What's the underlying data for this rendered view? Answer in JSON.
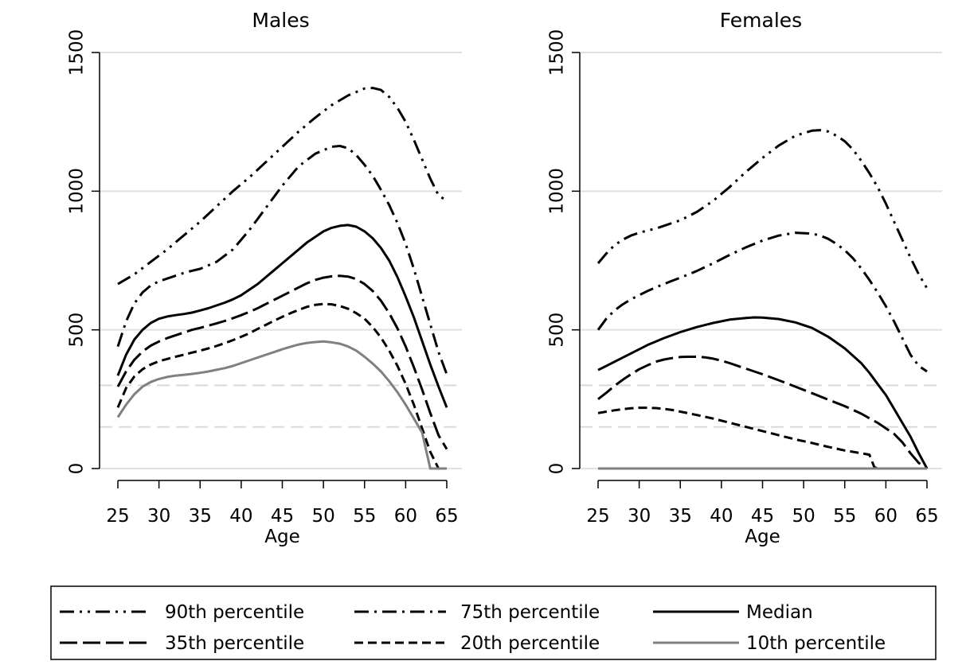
{
  "chart_data": [
    {
      "type": "line",
      "title": "Males",
      "xlabel": "Age",
      "ylabel": "",
      "xlim": [
        25,
        65
      ],
      "ylim": [
        0,
        1500
      ],
      "xticks": [
        25,
        30,
        35,
        40,
        45,
        50,
        55,
        60,
        65
      ],
      "yticks": [
        0,
        500,
        1000,
        1500
      ],
      "reference_lines": [
        150,
        300
      ],
      "series": [
        {
          "name": "90th percentile",
          "x": [
            25,
            27,
            29,
            31,
            33,
            35,
            37,
            39,
            41,
            43,
            45,
            47,
            49,
            51,
            53,
            55,
            56,
            57,
            58,
            59,
            60,
            61,
            62,
            63,
            64,
            65
          ],
          "y": [
            665,
            700,
            745,
            790,
            840,
            890,
            945,
            1000,
            1050,
            1105,
            1160,
            1215,
            1265,
            1310,
            1345,
            1370,
            1372,
            1365,
            1340,
            1300,
            1250,
            1185,
            1115,
            1045,
            985,
            965
          ]
        },
        {
          "name": "75th percentile",
          "x": [
            25,
            26,
            27,
            28,
            29,
            30,
            31,
            32,
            33,
            34,
            35,
            37,
            39,
            41,
            43,
            45,
            47,
            49,
            51,
            52,
            53,
            54,
            55,
            56,
            57,
            58,
            59,
            60,
            61,
            62,
            63,
            64,
            65
          ],
          "y": [
            440,
            530,
            595,
            635,
            660,
            675,
            685,
            695,
            705,
            713,
            720,
            745,
            790,
            860,
            940,
            1020,
            1090,
            1135,
            1160,
            1163,
            1155,
            1130,
            1095,
            1055,
            1005,
            950,
            885,
            810,
            720,
            620,
            520,
            420,
            340
          ]
        },
        {
          "name": "Median",
          "x": [
            25,
            26,
            27,
            28,
            29,
            30,
            31,
            32,
            33,
            34,
            35,
            36,
            37,
            38,
            39,
            40,
            41,
            42,
            43,
            44,
            45,
            46,
            47,
            48,
            49,
            50,
            51,
            52,
            53,
            54,
            55,
            56,
            57,
            58,
            59,
            60,
            61,
            62,
            63,
            64,
            65
          ],
          "y": [
            335,
            410,
            465,
            500,
            525,
            540,
            548,
            553,
            557,
            562,
            570,
            578,
            588,
            598,
            610,
            625,
            645,
            665,
            690,
            715,
            740,
            765,
            790,
            815,
            835,
            855,
            868,
            875,
            878,
            872,
            855,
            830,
            795,
            750,
            690,
            620,
            545,
            460,
            375,
            295,
            220
          ]
        },
        {
          "name": "35th percentile",
          "x": [
            25,
            26,
            27,
            28,
            29,
            30,
            31,
            32,
            33,
            34,
            35,
            36,
            37,
            38,
            39,
            40,
            41,
            42,
            43,
            44,
            45,
            46,
            47,
            48,
            49,
            50,
            51,
            52,
            53,
            54,
            55,
            56,
            57,
            58,
            59,
            60,
            61,
            62,
            63,
            64,
            65
          ],
          "y": [
            295,
            350,
            392,
            422,
            443,
            458,
            470,
            480,
            490,
            500,
            507,
            515,
            523,
            532,
            542,
            553,
            565,
            578,
            593,
            608,
            623,
            638,
            653,
            668,
            680,
            688,
            693,
            695,
            692,
            683,
            665,
            640,
            605,
            560,
            505,
            440,
            365,
            285,
            200,
            120,
            70
          ]
        },
        {
          "name": "20th percentile",
          "x": [
            25,
            26,
            27,
            28,
            29,
            30,
            31,
            32,
            33,
            34,
            35,
            36,
            37,
            38,
            39,
            40,
            41,
            42,
            43,
            44,
            45,
            46,
            47,
            48,
            49,
            50,
            51,
            52,
            53,
            54,
            55,
            56,
            57,
            58,
            59,
            60,
            61,
            62,
            63,
            64,
            65
          ],
          "y": [
            220,
            290,
            332,
            358,
            375,
            387,
            395,
            403,
            410,
            418,
            425,
            433,
            442,
            452,
            463,
            475,
            488,
            503,
            518,
            533,
            547,
            560,
            572,
            583,
            590,
            593,
            592,
            586,
            576,
            560,
            540,
            510,
            472,
            425,
            370,
            305,
            230,
            145,
            60,
            0,
            0
          ]
        },
        {
          "name": "10th percentile",
          "x": [
            25,
            26,
            27,
            28,
            29,
            30,
            31,
            32,
            33,
            34,
            35,
            36,
            37,
            38,
            39,
            40,
            41,
            42,
            43,
            44,
            45,
            46,
            47,
            48,
            49,
            50,
            51,
            52,
            53,
            54,
            55,
            56,
            57,
            58,
            59,
            60,
            61,
            62,
            63,
            64,
            65
          ],
          "y": [
            185,
            230,
            268,
            295,
            312,
            323,
            330,
            335,
            338,
            341,
            345,
            350,
            356,
            362,
            370,
            380,
            390,
            400,
            410,
            420,
            430,
            439,
            447,
            453,
            456,
            458,
            455,
            450,
            440,
            425,
            403,
            378,
            350,
            315,
            275,
            230,
            180,
            130,
            0,
            0,
            0
          ]
        }
      ]
    },
    {
      "type": "line",
      "title": "Females",
      "xlabel": "Age",
      "ylabel": "",
      "xlim": [
        25,
        65
      ],
      "ylim": [
        0,
        1500
      ],
      "xticks": [
        25,
        30,
        35,
        40,
        45,
        50,
        55,
        60,
        65
      ],
      "yticks": [
        0,
        500,
        1000,
        1500
      ],
      "reference_lines": [
        150,
        300
      ],
      "series": [
        {
          "name": "90th percentile",
          "x": [
            25,
            26,
            27,
            28,
            29,
            30,
            31,
            32,
            33,
            34,
            35,
            37,
            39,
            41,
            43,
            45,
            47,
            49,
            51,
            52,
            53,
            54,
            55,
            56,
            57,
            58,
            59,
            60,
            61,
            62,
            63,
            64,
            65
          ],
          "y": [
            740,
            775,
            805,
            825,
            840,
            850,
            858,
            865,
            875,
            885,
            895,
            925,
            965,
            1015,
            1070,
            1120,
            1165,
            1200,
            1218,
            1220,
            1215,
            1200,
            1180,
            1150,
            1110,
            1065,
            1015,
            955,
            890,
            825,
            760,
            700,
            650
          ]
        },
        {
          "name": "75th percentile",
          "x": [
            25,
            26,
            27,
            28,
            29,
            30,
            31,
            32,
            33,
            34,
            35,
            37,
            39,
            41,
            43,
            45,
            47,
            49,
            51,
            52,
            53,
            54,
            55,
            56,
            57,
            58,
            59,
            60,
            61,
            62,
            63,
            64,
            65
          ],
          "y": [
            500,
            540,
            570,
            592,
            610,
            625,
            640,
            653,
            665,
            677,
            688,
            712,
            740,
            770,
            798,
            822,
            840,
            850,
            847,
            840,
            828,
            810,
            787,
            758,
            722,
            680,
            635,
            585,
            530,
            470,
            410,
            370,
            350
          ]
        },
        {
          "name": "Median",
          "x": [
            25,
            27,
            29,
            31,
            33,
            35,
            37,
            39,
            41,
            43,
            44,
            45,
            47,
            49,
            51,
            53,
            55,
            57,
            58,
            59,
            60,
            61,
            62,
            63,
            64,
            65
          ],
          "y": [
            355,
            385,
            415,
            445,
            470,
            492,
            510,
            525,
            537,
            543,
            545,
            544,
            539,
            527,
            507,
            475,
            433,
            380,
            345,
            305,
            265,
            215,
            165,
            115,
            55,
            0
          ]
        },
        {
          "name": "35th percentile",
          "x": [
            25,
            26,
            27,
            28,
            29,
            30,
            31,
            32,
            33,
            34,
            35,
            36,
            37,
            38,
            39,
            40,
            41,
            43,
            45,
            47,
            49,
            51,
            53,
            55,
            57,
            59,
            61,
            62,
            63,
            64,
            65
          ],
          "y": [
            250,
            273,
            298,
            320,
            340,
            358,
            372,
            385,
            393,
            398,
            402,
            403,
            403,
            401,
            396,
            389,
            380,
            360,
            340,
            318,
            295,
            272,
            248,
            225,
            198,
            165,
            125,
            95,
            55,
            20,
            0
          ]
        },
        {
          "name": "20th percentile",
          "x": [
            25,
            26,
            27,
            28,
            29,
            30,
            31,
            32,
            33,
            34,
            35,
            37,
            39,
            41,
            43,
            45,
            47,
            49,
            51,
            53,
            55,
            57,
            58,
            58.6,
            59,
            60,
            61,
            62,
            63,
            64,
            65
          ],
          "y": [
            200,
            205,
            210,
            214,
            217,
            219,
            219,
            218,
            215,
            211,
            205,
            193,
            180,
            165,
            150,
            135,
            120,
            105,
            92,
            78,
            65,
            55,
            50,
            5,
            0,
            0,
            0,
            0,
            0,
            0,
            0
          ]
        },
        {
          "name": "10th percentile",
          "x": [
            25,
            65
          ],
          "y": [
            0,
            0
          ]
        }
      ]
    }
  ],
  "legend": {
    "placement": "bottom",
    "items": [
      {
        "label": "90th percentile",
        "style": "dash-dot-dot"
      },
      {
        "label": "75th percentile",
        "style": "dash-dot"
      },
      {
        "label": "Median",
        "style": "solid"
      },
      {
        "label": "35th percentile",
        "style": "long-dash"
      },
      {
        "label": "20th percentile",
        "style": "short-dash"
      },
      {
        "label": "10th percentile",
        "style": "solid-gray"
      }
    ]
  },
  "colors": {
    "line": "#000000",
    "tenth_percentile": "#808080",
    "gridline": "#e0e0e0",
    "reference_dash": "#d9d9d9",
    "background": "#ffffff"
  }
}
